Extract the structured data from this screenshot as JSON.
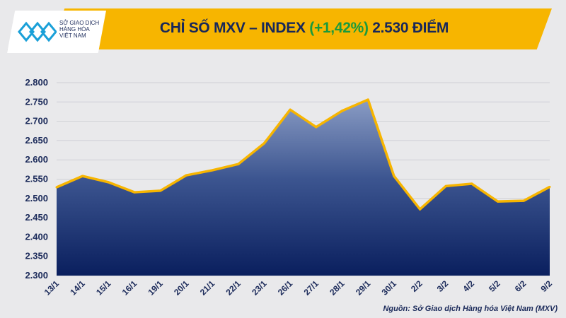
{
  "header": {
    "logo_lines": [
      "SỞ GIAO DỊCH",
      "HÀNG HÓA",
      "VIỆT NAM"
    ],
    "title_prefix": "CHỈ SỐ MXV – INDEX",
    "title_change": "(+1,42%)",
    "title_suffix": "2.530 ĐIỂM"
  },
  "colors": {
    "banner": "#f7b500",
    "line": "#f7b500",
    "area_top": "#7f90b8",
    "area_bottom": "#0a1f5e",
    "change": "#1a9a3c",
    "text": "#1b2a5a"
  },
  "source": "Nguồn: Sở Giao dịch Hàng hóa Việt Nam (MXV)",
  "chart_data": {
    "type": "area",
    "title": "CHỈ SỐ MXV – INDEX (+1,42%) 2.530 ĐIỂM",
    "categories": [
      "13/1",
      "14/1",
      "15/1",
      "16/1",
      "19/1",
      "20/1",
      "21/1",
      "22/1",
      "23/1",
      "26/1",
      "27/1",
      "28/1",
      "29/1",
      "30/1",
      "2/2",
      "3/2",
      "4/2",
      "5/2",
      "6/2",
      "9/2"
    ],
    "values": [
      2529,
      2558,
      2542,
      2516,
      2520,
      2560,
      2573,
      2589,
      2643,
      2730,
      2685,
      2727,
      2756,
      2558,
      2472,
      2532,
      2538,
      2492,
      2494,
      2530
    ],
    "ylim": [
      2300,
      2800
    ],
    "yticks": [
      "2.300",
      "2.350",
      "2.400",
      "2.450",
      "2.500",
      "2.550",
      "2.600",
      "2.650",
      "2.700",
      "2.750",
      "2.800"
    ],
    "grid": true,
    "legend": "none"
  }
}
